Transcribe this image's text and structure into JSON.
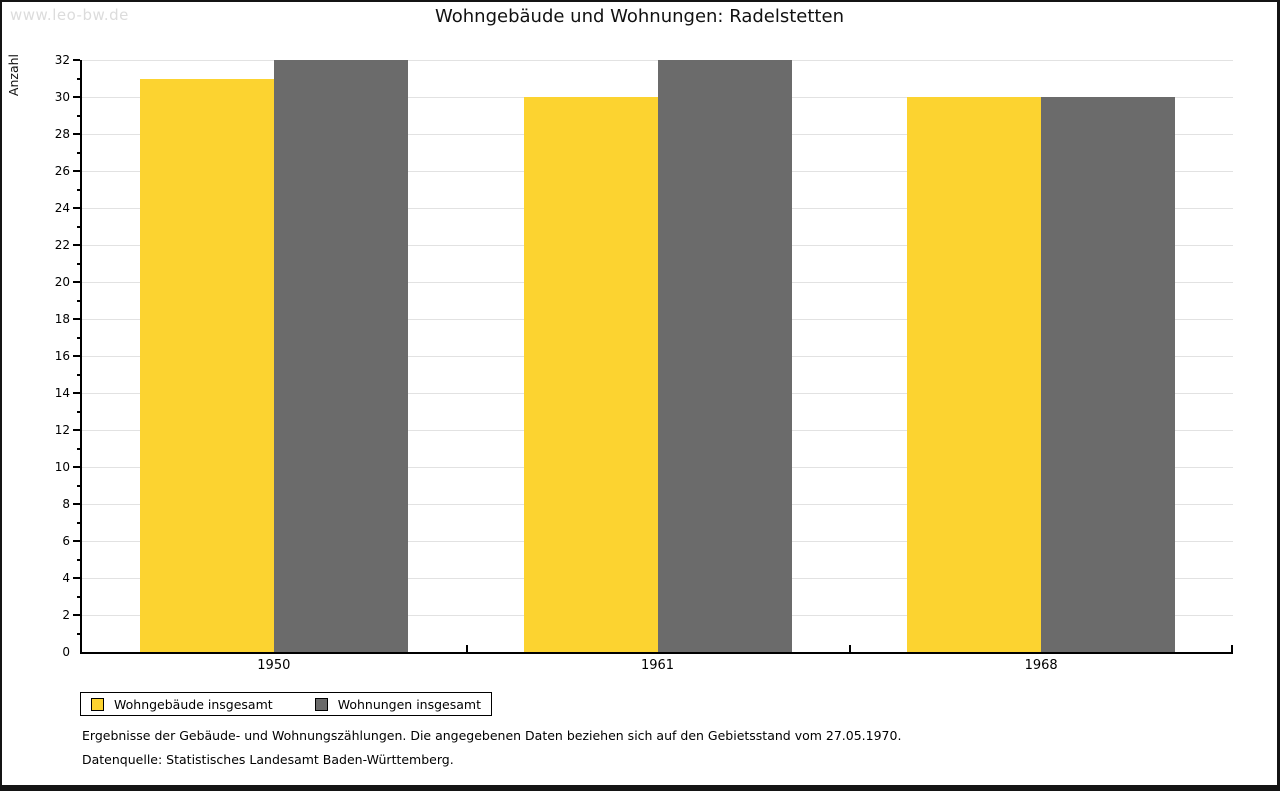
{
  "watermark": "www.leo-bw.de",
  "title": "Wohngebäude und Wohnungen: Radelstetten",
  "footnotes": {
    "line1": "Ergebnisse der Gebäude- und Wohnungszählungen. Die angegebenen Daten beziehen sich auf den Gebietsstand vom 27.05.1970.",
    "line2": "Datenquelle: Statistisches Landesamt Baden-Württemberg."
  },
  "chart_data": {
    "type": "bar",
    "title": "Wohngebäude und Wohnungen: Radelstetten",
    "ylabel": "Anzahl",
    "xlabel": "",
    "categories": [
      "1950",
      "1961",
      "1968"
    ],
    "series": [
      {
        "name": "Wohngebäude insgesamt",
        "color": "#FCD330",
        "values": [
          31,
          30,
          30
        ]
      },
      {
        "name": "Wohnungen insgesamt",
        "color": "#6B6B6B",
        "values": [
          32,
          32,
          30
        ]
      }
    ],
    "ylim": [
      0,
      32
    ],
    "ytick_labeled_step": 2,
    "ytick_minor_step": 1,
    "grid": "horizontal",
    "grid_color": "#e2e2e2",
    "legend_position": "bottom-left"
  }
}
